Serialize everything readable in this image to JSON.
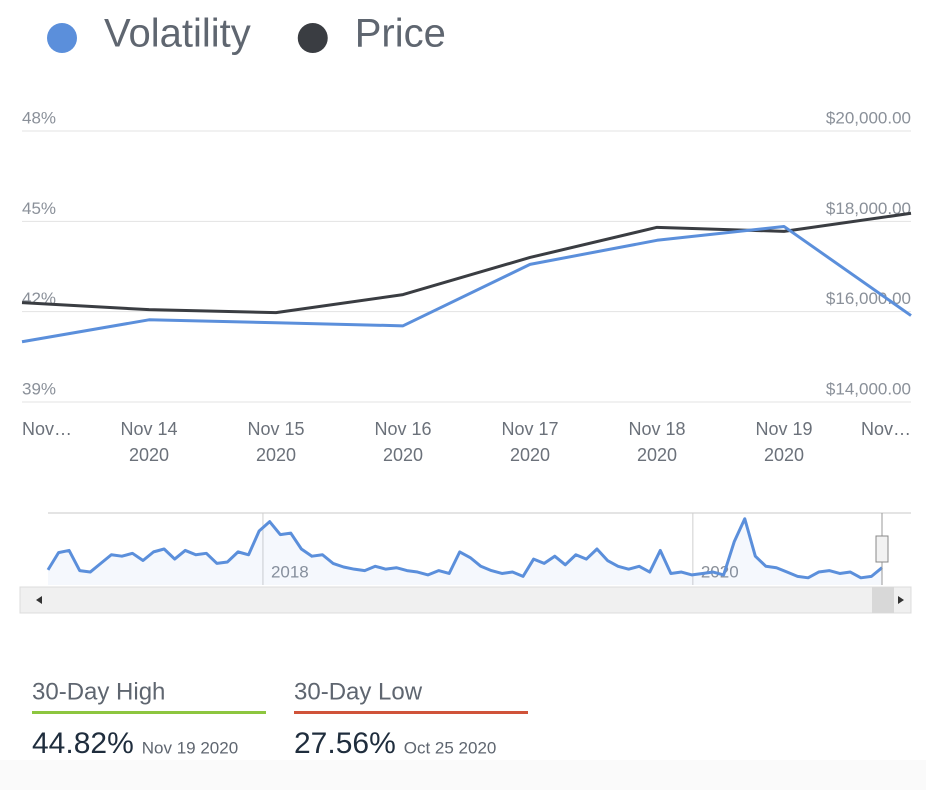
{
  "chart_data": [
    {
      "type": "line",
      "categories": [
        "Nov…",
        "Nov 14",
        "Nov 15",
        "Nov 16",
        "Nov 17",
        "Nov 18",
        "Nov 19",
        "Nov…"
      ],
      "category_years": [
        null,
        "2020",
        "2020",
        "2020",
        "2020",
        "2020",
        "2020",
        null
      ],
      "series": [
        {
          "name": "Volatility",
          "color": "#5b8fdb",
          "values": [
            41.0,
            41.73,
            41.63,
            41.53,
            43.57,
            44.37,
            44.83,
            41.87
          ]
        },
        {
          "name": "Price",
          "color": "#3a3d42",
          "axis": "y2",
          "values": [
            16200,
            16044,
            15978,
            16378,
            17200,
            17867,
            17778,
            18178
          ]
        }
      ],
      "ylim": [
        39,
        48
      ],
      "yticks": [
        {
          "value": 39,
          "label": "39%"
        },
        {
          "value": 42,
          "label": "42%"
        },
        {
          "value": 45,
          "label": "45%"
        },
        {
          "value": 48,
          "label": "48%"
        }
      ],
      "y2lim": [
        14000,
        20000
      ],
      "y2ticks": [
        {
          "value": 14000,
          "label": "$14,000.00"
        },
        {
          "value": 16000,
          "label": "$16,000.00"
        },
        {
          "value": 18000,
          "label": "$18,000.00"
        },
        {
          "value": 20000,
          "label": "$20,000.00"
        }
      ],
      "grid": true,
      "legend": "top-left"
    },
    {
      "type": "area",
      "color": "#5b8fdb",
      "xlim": [
        2017,
        2020.88
      ],
      "xticks": [
        2018,
        2020
      ],
      "ylim": [
        0,
        100
      ],
      "values": [
        21,
        45,
        48,
        20,
        18,
        30,
        42,
        40,
        44,
        34,
        46,
        50,
        36,
        48,
        42,
        44,
        30,
        32,
        46,
        42,
        75,
        88,
        70,
        72,
        50,
        40,
        42,
        30,
        25,
        22,
        20,
        26,
        22,
        24,
        20,
        18,
        14,
        20,
        16,
        46,
        38,
        26,
        20,
        16,
        18,
        12,
        36,
        30,
        40,
        28,
        42,
        36,
        50,
        34,
        26,
        22,
        26,
        18,
        48,
        16,
        18,
        14,
        16,
        18,
        14,
        60,
        92,
        40,
        26,
        24,
        18,
        12,
        10,
        18,
        20,
        16,
        18,
        10,
        12,
        24
      ]
    }
  ],
  "stats": [
    {
      "label": "30-Day High",
      "value": "44.82%",
      "date": "Nov 19 2020",
      "color": "#8dc63f"
    },
    {
      "label": "30-Day Low",
      "value": "27.56%",
      "date": "Oct 25 2020",
      "color": "#d0533a"
    }
  ]
}
